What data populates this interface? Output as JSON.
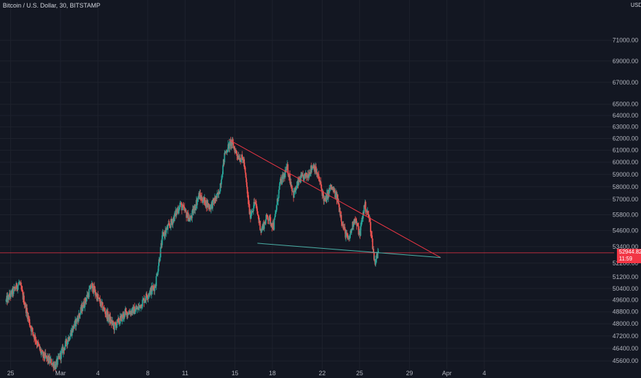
{
  "header": {
    "title": "Bitcoin / U.S. Dollar, 30, BITSTAMP",
    "currency": "USD"
  },
  "colors": {
    "background": "#131722",
    "up_candle": "#26a69a",
    "down_candle": "#ef5350",
    "resistance_line": "#f23645",
    "support_line": "#4db6ac",
    "price_line": "#f23645"
  },
  "price_tag": {
    "price": "52944.82",
    "countdown": "11:59"
  },
  "chart_data": {
    "type": "candlestick",
    "y_scale": "log",
    "ylim": [
      45350,
      74500
    ],
    "y_ticks": [
      {
        "label": "71000.00",
        "value": 71000
      },
      {
        "label": "69000.00",
        "value": 69000
      },
      {
        "label": "67000.00",
        "value": 67000
      },
      {
        "label": "65000.00",
        "value": 65000
      },
      {
        "label": "64000.00",
        "value": 64000
      },
      {
        "label": "63000.00",
        "value": 63000
      },
      {
        "label": "62000.00",
        "value": 62000
      },
      {
        "label": "61000.00",
        "value": 61000
      },
      {
        "label": "60000.00",
        "value": 60000
      },
      {
        "label": "59000.00",
        "value": 59000
      },
      {
        "label": "58000.00",
        "value": 58000
      },
      {
        "label": "57000.00",
        "value": 57000
      },
      {
        "label": "55800.00",
        "value": 55800
      },
      {
        "label": "54600.00",
        "value": 54600
      },
      {
        "label": "53400.00",
        "value": 53400
      },
      {
        "label": "52200.00",
        "value": 52200
      },
      {
        "label": "51200.00",
        "value": 51200
      },
      {
        "label": "50400.00",
        "value": 50400
      },
      {
        "label": "49600.00",
        "value": 49600
      },
      {
        "label": "48800.00",
        "value": 48800
      },
      {
        "label": "48000.00",
        "value": 48000
      },
      {
        "label": "47200.00",
        "value": 47200
      },
      {
        "label": "46400.00",
        "value": 46400
      },
      {
        "label": "45600.00",
        "value": 45600
      }
    ],
    "x_ticks": [
      {
        "label": "25",
        "day": -4
      },
      {
        "label": "Mar",
        "day": 0
      },
      {
        "label": "4",
        "day": 3
      },
      {
        "label": "8",
        "day": 7
      },
      {
        "label": "11",
        "day": 10
      },
      {
        "label": "15",
        "day": 14
      },
      {
        "label": "18",
        "day": 17
      },
      {
        "label": "22",
        "day": 21
      },
      {
        "label": "25",
        "day": 24
      },
      {
        "label": "29",
        "day": 28
      },
      {
        "label": "Apr",
        "day": 31
      },
      {
        "label": "4",
        "day": 34
      }
    ],
    "anchors": [
      {
        "day": -4.4,
        "price": 49500
      },
      {
        "day": -3.3,
        "price": 50800
      },
      {
        "day": -2.4,
        "price": 47800
      },
      {
        "day": -1.5,
        "price": 46000
      },
      {
        "day": -0.4,
        "price": 45300
      },
      {
        "day": 0.6,
        "price": 47000
      },
      {
        "day": 1.5,
        "price": 48600
      },
      {
        "day": 2.5,
        "price": 50600
      },
      {
        "day": 3.3,
        "price": 49200
      },
      {
        "day": 4.3,
        "price": 47800
      },
      {
        "day": 5.2,
        "price": 48700
      },
      {
        "day": 6.2,
        "price": 49000
      },
      {
        "day": 7.0,
        "price": 50000
      },
      {
        "day": 7.6,
        "price": 50600
      },
      {
        "day": 8.2,
        "price": 54200
      },
      {
        "day": 8.9,
        "price": 55200
      },
      {
        "day": 9.6,
        "price": 56600
      },
      {
        "day": 10.4,
        "price": 55400
      },
      {
        "day": 11.1,
        "price": 57300
      },
      {
        "day": 12.0,
        "price": 56400
      },
      {
        "day": 12.7,
        "price": 57400
      },
      {
        "day": 13.2,
        "price": 60800
      },
      {
        "day": 13.7,
        "price": 61700
      },
      {
        "day": 14.2,
        "price": 60600
      },
      {
        "day": 14.7,
        "price": 60100
      },
      {
        "day": 15.2,
        "price": 55700
      },
      {
        "day": 15.6,
        "price": 56800
      },
      {
        "day": 16.1,
        "price": 54600
      },
      {
        "day": 16.6,
        "price": 55700
      },
      {
        "day": 17.1,
        "price": 54900
      },
      {
        "day": 17.6,
        "price": 58200
      },
      {
        "day": 18.2,
        "price": 59500
      },
      {
        "day": 18.7,
        "price": 57400
      },
      {
        "day": 19.2,
        "price": 58600
      },
      {
        "day": 19.8,
        "price": 58900
      },
      {
        "day": 20.3,
        "price": 59800
      },
      {
        "day": 20.8,
        "price": 58400
      },
      {
        "day": 21.2,
        "price": 56800
      },
      {
        "day": 21.7,
        "price": 58000
      },
      {
        "day": 22.2,
        "price": 57100
      },
      {
        "day": 22.7,
        "price": 54800
      },
      {
        "day": 23.1,
        "price": 53800
      },
      {
        "day": 23.6,
        "price": 55600
      },
      {
        "day": 24.0,
        "price": 54300
      },
      {
        "day": 24.4,
        "price": 56600
      },
      {
        "day": 24.8,
        "price": 55400
      },
      {
        "day": 25.2,
        "price": 52300
      },
      {
        "day": 25.5,
        "price": 52944.82
      }
    ],
    "resistance_line": {
      "start": {
        "day": 13.5,
        "price": 61900
      },
      "end": {
        "day": 30.5,
        "price": 52600
      }
    },
    "support_line": {
      "start": {
        "day": 15.8,
        "price": 53650
      },
      "end": {
        "day": 30.5,
        "price": 52600
      }
    },
    "last_price": 52944.82
  }
}
